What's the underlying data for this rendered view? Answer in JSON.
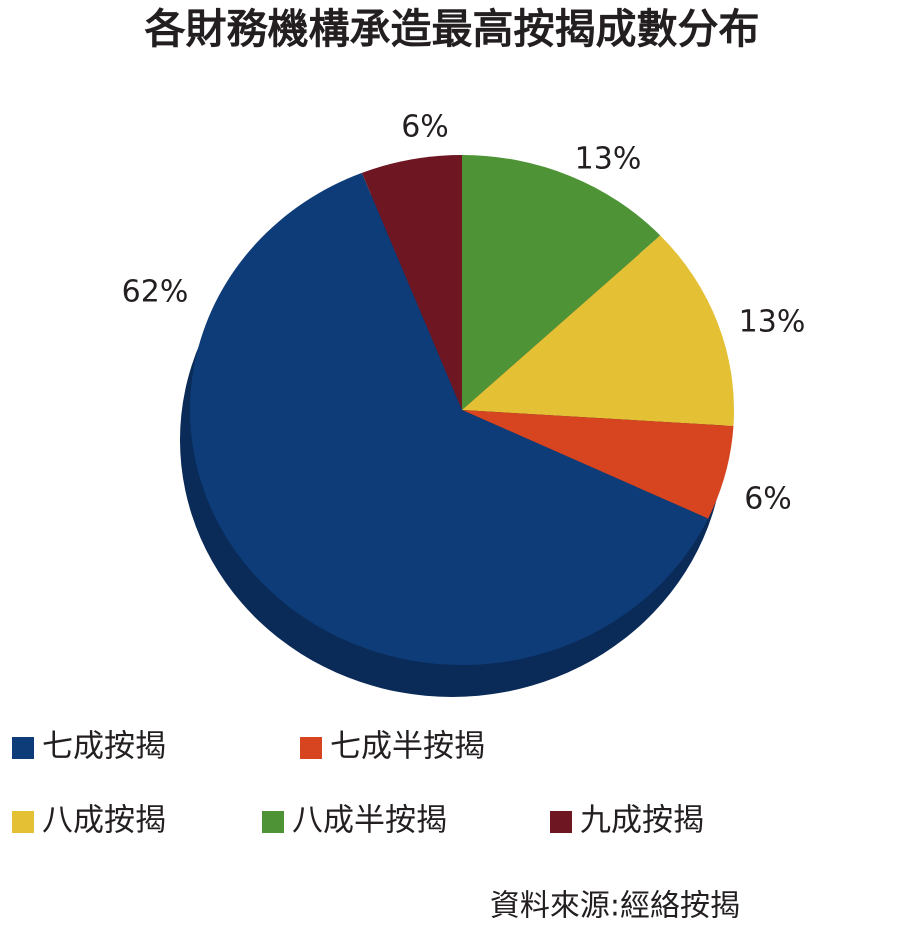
{
  "chart_data": {
    "type": "pie",
    "title": "各財務機構承造最高按揭成數分布",
    "categories": [
      "七成按揭",
      "七成半按揭",
      "八成按揭",
      "八成半按揭",
      "九成按揭"
    ],
    "values": [
      62,
      6,
      13,
      13,
      6
    ],
    "value_labels": [
      "62%",
      "6%",
      "13%",
      "13%",
      "6%"
    ],
    "colors": [
      "#0d3c78",
      "#d6451f",
      "#e3c034",
      "#4e9336",
      "#6e1622"
    ],
    "source": "資料來源:經絡按揭"
  }
}
